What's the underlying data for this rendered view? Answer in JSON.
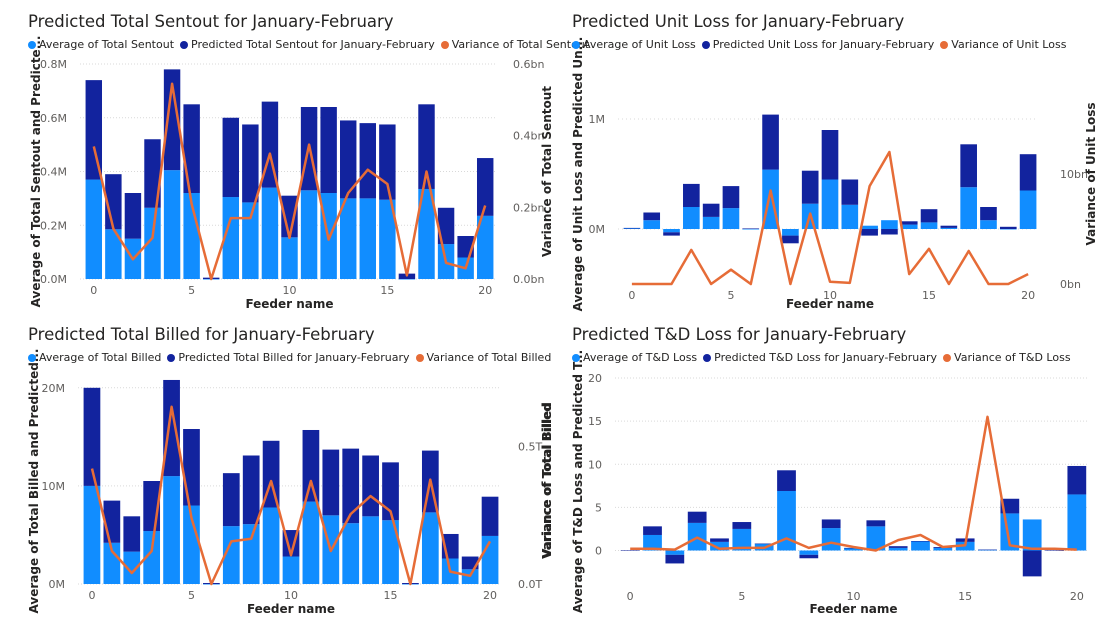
{
  "colors": {
    "avg": "#118DFF",
    "pred": "#12239E",
    "var": "#E66C37",
    "grid": "#d9d9d9",
    "tick": "#605E5C",
    "label": "#252423"
  },
  "chart_data": [
    {
      "type": "bar",
      "title": "Predicted Total Sentout for January-February",
      "legend": [
        "Average of Total Sentout",
        "Predicted Total Sentout for January-February",
        "Variance of Total Sentout"
      ],
      "xlabel": "Feeder name",
      "ylabel": "Average of Total Sentout and Predicte...",
      "y2label": "Variance of Total Sentout",
      "x_ticks": [
        "0",
        "5",
        "10",
        "15",
        "20"
      ],
      "y_ticks": [
        "0.0M",
        "0.2M",
        "0.4M",
        "0.6M",
        "0.8M"
      ],
      "y2_ticks": [
        "0.0bn",
        "0.2bn",
        "0.4bn",
        "0.6bn"
      ],
      "ylim": [
        0,
        800000
      ],
      "y2lim": [
        0,
        600000000
      ],
      "x": [
        0,
        1,
        2,
        3,
        4,
        5,
        6,
        7,
        8,
        9,
        10,
        11,
        12,
        13,
        14,
        15,
        16,
        17,
        18,
        19,
        20
      ],
      "series": [
        {
          "name": "Average of Total Sentout",
          "values": [
            370000,
            185000,
            150000,
            265000,
            405000,
            320000,
            0,
            305000,
            285000,
            340000,
            155000,
            330000,
            320000,
            300000,
            300000,
            295000,
            0,
            335000,
            130000,
            80000,
            235000
          ]
        },
        {
          "name": "Predicted Total Sentout for January-February",
          "values": [
            370000,
            205000,
            170000,
            255000,
            375000,
            330000,
            5000,
            295000,
            290000,
            320000,
            155000,
            310000,
            320000,
            290000,
            280000,
            280000,
            20000,
            315000,
            135000,
            80000,
            215000
          ]
        },
        {
          "name": "Variance of Total Sentout",
          "values": [
            370000000,
            140000000,
            55000000,
            115000000,
            545000000,
            210000000,
            0,
            170000000,
            170000000,
            350000000,
            115000000,
            375000000,
            110000000,
            240000000,
            305000000,
            265000000,
            10000000,
            300000000,
            45000000,
            30000000,
            205000000
          ]
        }
      ]
    },
    {
      "type": "bar",
      "title": "Predicted Unit Loss for January-February",
      "legend": [
        "Average of Unit Loss",
        "Predicted Unit Loss for January-February",
        "Variance of Unit Loss"
      ],
      "xlabel": "Feeder name",
      "ylabel": "Average of Unit Loss and Predicted Un...",
      "y2label": "Variance of Unit Loss",
      "x_ticks": [
        "0",
        "5",
        "10",
        "15",
        "20"
      ],
      "y_ticks": [
        "0M",
        "1M"
      ],
      "y2_ticks": [
        "0bn",
        "10bn"
      ],
      "ylim": [
        -500000,
        1500000
      ],
      "y2lim": [
        0,
        20000000000
      ],
      "x": [
        0,
        1,
        2,
        3,
        4,
        5,
        6,
        7,
        8,
        9,
        10,
        11,
        12,
        13,
        14,
        15,
        16,
        17,
        18,
        19,
        20
      ],
      "series": [
        {
          "name": "Average of Unit Loss",
          "values": [
            5000,
            80000,
            -30000,
            200000,
            110000,
            190000,
            0,
            540000,
            -60000,
            230000,
            450000,
            220000,
            30000,
            80000,
            40000,
            60000,
            10000,
            380000,
            80000,
            0,
            350000
          ]
        },
        {
          "name": "Predicted Unit Loss for January-February",
          "values": [
            5000,
            70000,
            -30000,
            210000,
            120000,
            200000,
            5000,
            500000,
            -70000,
            300000,
            450000,
            230000,
            -60000,
            -50000,
            30000,
            120000,
            20000,
            390000,
            120000,
            20000,
            330000
          ]
        },
        {
          "name": "Variance of Unit Loss",
          "values": [
            0,
            0,
            0,
            3100000000,
            0,
            1300000000,
            0,
            8500000000,
            0,
            6400000000,
            200000000,
            100000000,
            8900000000,
            12000000000,
            900000000,
            3200000000,
            0,
            3000000000,
            0,
            0,
            900000000
          ]
        }
      ]
    },
    {
      "type": "bar",
      "title": "Predicted Total Billed for January-February",
      "legend": [
        "Average of Total Billed",
        "Predicted Total Billed for January-February",
        "Variance of Total Billed"
      ],
      "xlabel": "Feeder name",
      "ylabel": "Average of Total Billed and Predicted...",
      "y2label": "Variance of Total Billed",
      "x_ticks": [
        "0",
        "5",
        "10",
        "15",
        "20"
      ],
      "y_ticks": [
        "0M",
        "10M",
        "20M"
      ],
      "y2_ticks": [
        "0.0T",
        "0.5T"
      ],
      "ylim": [
        0,
        21000000
      ],
      "y2lim": [
        0,
        750000000000
      ],
      "x": [
        0,
        1,
        2,
        3,
        4,
        5,
        6,
        7,
        8,
        9,
        10,
        11,
        12,
        13,
        14,
        15,
        16,
        17,
        18,
        19,
        20
      ],
      "series": [
        {
          "name": "Average of Total Billed",
          "values": [
            10000000,
            4200000,
            3300000,
            5400000,
            11000000,
            8000000,
            0,
            5900000,
            6100000,
            7800000,
            2800000,
            8400000,
            7000000,
            6200000,
            6900000,
            6500000,
            0,
            7300000,
            2600000,
            1500000,
            4900000
          ]
        },
        {
          "name": "Predicted Total Billed for January-February",
          "values": [
            10000000,
            4300000,
            3600000,
            5100000,
            9800000,
            7800000,
            100000,
            5400000,
            7000000,
            6800000,
            2700000,
            7300000,
            6700000,
            7600000,
            6200000,
            5900000,
            100000,
            6300000,
            2500000,
            1300000,
            4000000
          ]
        },
        {
          "name": "Variance of Total Billed",
          "values": [
            420000000000,
            120000000000,
            40000000000,
            120000000000,
            645000000000,
            240000000000,
            0,
            155000000000,
            165000000000,
            375000000000,
            105000000000,
            375000000000,
            120000000000,
            255000000000,
            320000000000,
            265000000000,
            0,
            380000000000,
            45000000000,
            30000000000,
            155000000000
          ]
        }
      ]
    },
    {
      "type": "bar",
      "title": "Predicted T&D Loss for January-February",
      "legend": [
        "Average of T&D Loss",
        "Predicted T&D Loss for January-February",
        "Variance of T&D Loss"
      ],
      "xlabel": "Feeder name",
      "ylabel": "Average of T&D Loss and Predicted T...",
      "y2label": "Variance of Total Billed",
      "x_ticks": [
        "0",
        "5",
        "10",
        "15",
        "20"
      ],
      "y_ticks": [
        "0",
        "5",
        "10",
        "15",
        "20"
      ],
      "ylim": [
        -4,
        20
      ],
      "x": [
        0,
        1,
        2,
        3,
        4,
        5,
        6,
        7,
        8,
        9,
        10,
        11,
        12,
        13,
        14,
        15,
        16,
        17,
        18,
        19,
        20
      ],
      "series": [
        {
          "name": "Average of T&D Loss",
          "values": [
            0,
            1.8,
            -0.5,
            3.2,
            1.0,
            2.5,
            0.8,
            6.9,
            -0.5,
            2.6,
            0.3,
            2.8,
            0.3,
            1.1,
            0.3,
            1.0,
            0.1,
            4.3,
            3.6,
            0,
            6.5
          ]
        },
        {
          "name": "Predicted T&D Loss for January-February",
          "values": [
            0,
            1.0,
            -1.0,
            1.3,
            0.4,
            0.8,
            0,
            2.4,
            -0.4,
            1.0,
            0,
            0.7,
            0.2,
            0,
            0.1,
            0.4,
            0,
            1.7,
            -3.0,
            0,
            3.3
          ]
        },
        {
          "name": "Variance of T&D Loss",
          "values": [
            0.2,
            0.2,
            0.1,
            1.5,
            0.2,
            0.3,
            0.3,
            1.4,
            0.3,
            0.9,
            0.4,
            0,
            1.2,
            1.8,
            0.4,
            0.6,
            15.5,
            0.6,
            0.2,
            0.2,
            0.1
          ]
        }
      ]
    }
  ]
}
